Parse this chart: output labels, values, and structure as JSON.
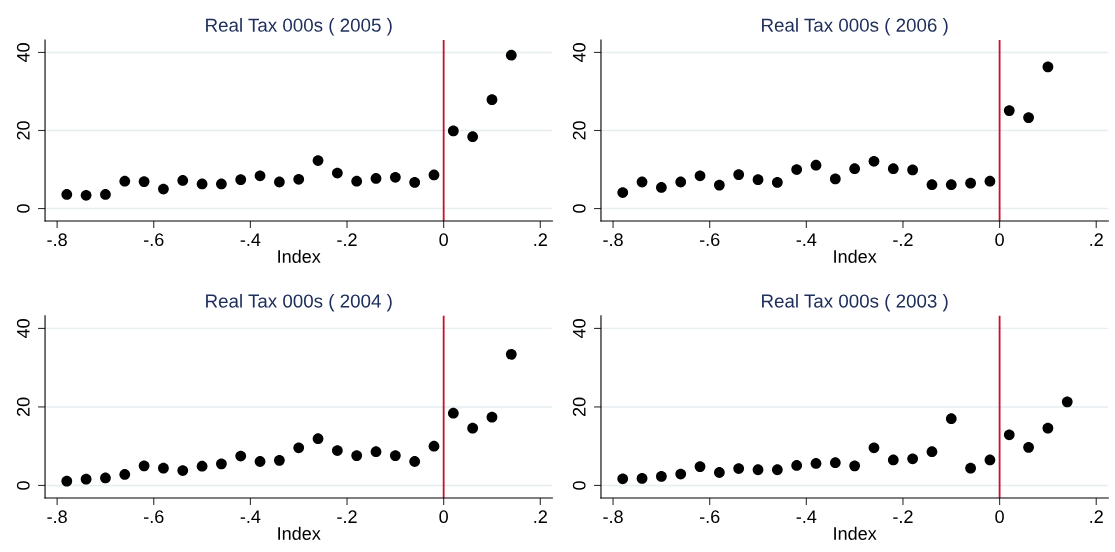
{
  "chart_data": [
    {
      "type": "scatter",
      "title": "Real Tax 000s ( 2005 )",
      "xlabel": "Index",
      "color": "#000000",
      "marker": "circle",
      "grid": "y",
      "x": [
        -0.78,
        -0.74,
        -0.7,
        -0.66,
        -0.62,
        -0.58,
        -0.54,
        -0.5,
        -0.46,
        -0.42,
        -0.38,
        -0.34,
        -0.3,
        -0.26,
        -0.22,
        -0.18,
        -0.14,
        -0.1,
        -0.06,
        -0.02,
        0.02,
        0.06,
        0.1,
        0.14
      ],
      "values": [
        3.6,
        3.4,
        3.6,
        7.0,
        6.9,
        5.0,
        7.2,
        6.3,
        6.3,
        7.4,
        8.4,
        6.8,
        7.5,
        12.3,
        9.1,
        7.0,
        7.7,
        8.0,
        6.7,
        8.6,
        19.9,
        18.4,
        27.9,
        39.3
      ],
      "xlim": [
        -0.825,
        0.225
      ],
      "ylim": [
        -3.2,
        43.2
      ],
      "xticks": [
        {
          "value": -0.8,
          "label": "-.8"
        },
        {
          "value": -0.6,
          "label": "-.6"
        },
        {
          "value": -0.4,
          "label": "-.4"
        },
        {
          "value": -0.2,
          "label": "-.2"
        },
        0,
        {
          "value": 0.2,
          "label": ".2"
        }
      ],
      "yticks": [
        0,
        20,
        40
      ],
      "ref_lines": [
        {
          "axis": "x",
          "value": 0,
          "color": "#c8102e"
        }
      ]
    },
    {
      "type": "scatter",
      "title": "Real Tax 000s ( 2006 )",
      "xlabel": "Index",
      "color": "#000000",
      "marker": "circle",
      "grid": "y",
      "x": [
        -0.78,
        -0.74,
        -0.7,
        -0.66,
        -0.62,
        -0.58,
        -0.54,
        -0.5,
        -0.46,
        -0.42,
        -0.38,
        -0.34,
        -0.3,
        -0.26,
        -0.22,
        -0.18,
        -0.14,
        -0.1,
        -0.06,
        -0.02,
        0.02,
        0.06,
        0.1
      ],
      "values": [
        4.1,
        6.8,
        5.4,
        6.8,
        8.4,
        6.0,
        8.7,
        7.4,
        6.7,
        10.0,
        11.1,
        7.6,
        10.2,
        12.1,
        10.2,
        9.9,
        6.1,
        6.1,
        6.5,
        7.0,
        25.1,
        23.3,
        36.3
      ],
      "xlim": [
        -0.825,
        0.225
      ],
      "ylim": [
        -3.2,
        43.2
      ],
      "xticks": [
        {
          "value": -0.8,
          "label": "-.8"
        },
        {
          "value": -0.6,
          "label": "-.6"
        },
        {
          "value": -0.4,
          "label": "-.4"
        },
        {
          "value": -0.2,
          "label": "-.2"
        },
        0,
        {
          "value": 0.2,
          "label": ".2"
        }
      ],
      "yticks": [
        0,
        20,
        40
      ],
      "ref_lines": [
        {
          "axis": "x",
          "value": 0,
          "color": "#c8102e"
        }
      ]
    },
    {
      "type": "scatter",
      "title": "Real Tax 000s ( 2004 )",
      "xlabel": "Index",
      "color": "#000000",
      "marker": "circle",
      "grid": "y",
      "x": [
        -0.78,
        -0.74,
        -0.7,
        -0.66,
        -0.62,
        -0.58,
        -0.54,
        -0.5,
        -0.46,
        -0.42,
        -0.38,
        -0.34,
        -0.3,
        -0.26,
        -0.22,
        -0.18,
        -0.14,
        -0.1,
        -0.06,
        -0.02,
        0.02,
        0.06,
        0.1,
        0.14
      ],
      "values": [
        1.1,
        1.6,
        1.9,
        2.8,
        5.0,
        4.4,
        3.8,
        4.9,
        5.5,
        7.5,
        6.1,
        6.4,
        9.6,
        11.9,
        8.9,
        7.6,
        8.6,
        7.6,
        6.1,
        10.0,
        18.4,
        14.6,
        17.4,
        33.4
      ],
      "xlim": [
        -0.825,
        0.225
      ],
      "ylim": [
        -3.2,
        43.2
      ],
      "xticks": [
        {
          "value": -0.8,
          "label": "-.8"
        },
        {
          "value": -0.6,
          "label": "-.6"
        },
        {
          "value": -0.4,
          "label": "-.4"
        },
        {
          "value": -0.2,
          "label": "-.2"
        },
        0,
        {
          "value": 0.2,
          "label": ".2"
        }
      ],
      "yticks": [
        0,
        20,
        40
      ],
      "ref_lines": [
        {
          "axis": "x",
          "value": 0,
          "color": "#c8102e"
        }
      ]
    },
    {
      "type": "scatter",
      "title": "Real Tax 000s ( 2003 )",
      "xlabel": "Index",
      "color": "#000000",
      "marker": "circle",
      "grid": "y",
      "x": [
        -0.78,
        -0.74,
        -0.7,
        -0.66,
        -0.62,
        -0.58,
        -0.54,
        -0.5,
        -0.46,
        -0.42,
        -0.38,
        -0.34,
        -0.3,
        -0.26,
        -0.22,
        -0.18,
        -0.14,
        -0.1,
        -0.06,
        -0.02,
        0.02,
        0.06,
        0.1,
        0.14
      ],
      "values": [
        1.7,
        1.8,
        2.3,
        2.9,
        4.8,
        3.3,
        4.3,
        4.0,
        4.0,
        5.1,
        5.6,
        5.8,
        5.0,
        9.6,
        6.5,
        6.8,
        8.6,
        17.0,
        4.4,
        6.5,
        12.9,
        9.7,
        14.6,
        21.3
      ],
      "xlim": [
        -0.825,
        0.225
      ],
      "ylim": [
        -3.2,
        43.2
      ],
      "xticks": [
        {
          "value": -0.8,
          "label": "-.8"
        },
        {
          "value": -0.6,
          "label": "-.6"
        },
        {
          "value": -0.4,
          "label": "-.4"
        },
        {
          "value": -0.2,
          "label": "-.2"
        },
        0,
        {
          "value": 0.2,
          "label": ".2"
        }
      ],
      "yticks": [
        0,
        20,
        40
      ],
      "ref_lines": [
        {
          "axis": "x",
          "value": 0,
          "color": "#c8102e"
        }
      ]
    }
  ]
}
